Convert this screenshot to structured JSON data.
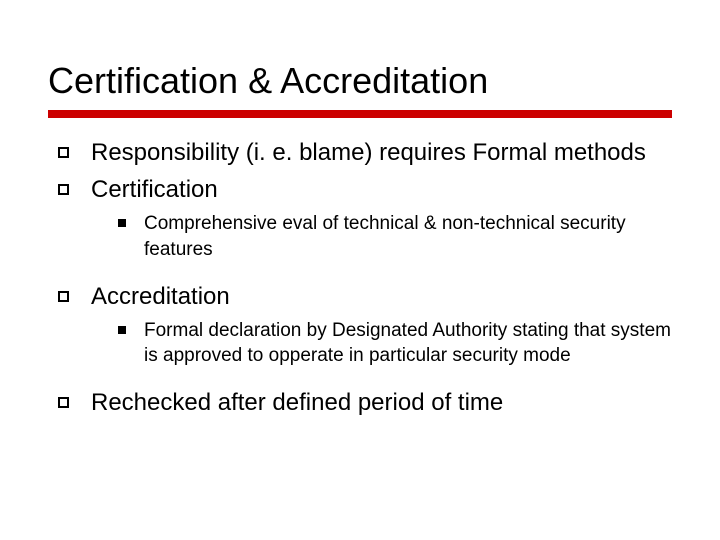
{
  "title": "Certification & Accreditation",
  "accent_color": "#cc0000",
  "background_color": "#ffffff",
  "text_color": "#000000",
  "title_fontsize": 36,
  "body_fontsize": 24,
  "sub_fontsize": 19,
  "items": [
    {
      "level": 1,
      "text": "Responsibility (i. e. blame) requires Formal methods"
    },
    {
      "level": 1,
      "text": "Certification"
    },
    {
      "level": 2,
      "text": "Comprehensive eval of technical & non-technical security features"
    },
    {
      "level": 1,
      "text": "Accreditation"
    },
    {
      "level": 2,
      "text": "Formal declaration by Designated Authority stating that system is approved to opperate in particular security mode"
    },
    {
      "level": 1,
      "text": "Rechecked after defined period of time"
    }
  ],
  "bullet_lvl1": {
    "type": "hollow-square",
    "size": 11,
    "border": 2
  },
  "bullet_lvl2": {
    "type": "filled-square",
    "size": 8
  }
}
